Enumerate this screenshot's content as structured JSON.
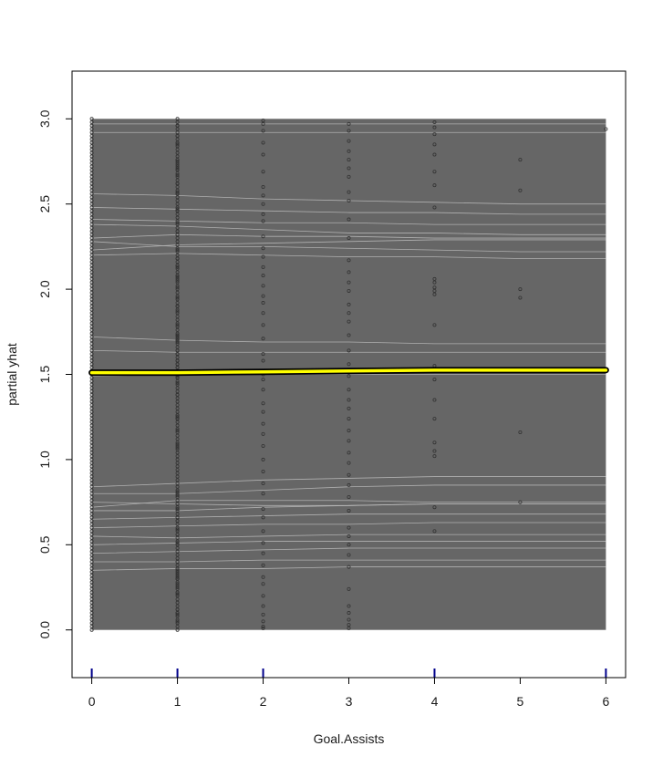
{
  "chart_data": {
    "type": "line",
    "title": "",
    "xlabel": "Goal.Assists",
    "ylabel": "partial yhat",
    "xlim": [
      -0.23,
      6.23
    ],
    "ylim": [
      -0.28,
      3.28
    ],
    "xticks": [
      0,
      1,
      2,
      3,
      4,
      5,
      6
    ],
    "yticks": [
      0.0,
      0.5,
      1.0,
      1.5,
      2.0,
      2.5,
      3.0
    ],
    "xtick_labels": [
      "0",
      "1",
      "2",
      "3",
      "4",
      "5",
      "6"
    ],
    "ytick_labels": [
      "0.0",
      "0.5",
      "1.0",
      "1.5",
      "2.0",
      "2.5",
      "3.0"
    ],
    "grid": false,
    "legend": "none",
    "band": {
      "description": "individual conditional expectation curves",
      "x_range": [
        0,
        6
      ],
      "y_range": [
        0.0,
        3.0
      ],
      "color": "#666666"
    },
    "lighter_lines": [
      {
        "values": [
          2.28,
          2.25,
          2.25,
          2.24,
          2.23,
          2.22,
          2.22
        ]
      },
      {
        "values": [
          2.23,
          2.26,
          2.27,
          2.28,
          2.29,
          2.29,
          2.29
        ]
      },
      {
        "values": [
          2.38,
          2.37,
          2.35,
          2.33,
          2.33,
          2.32,
          2.32
        ]
      },
      {
        "values": [
          2.41,
          2.4,
          2.39,
          2.39,
          2.38,
          2.38,
          2.38
        ]
      },
      {
        "values": [
          2.2,
          2.21,
          2.2,
          2.19,
          2.19,
          2.18,
          2.18
        ]
      },
      {
        "values": [
          2.3,
          2.32,
          2.31,
          2.31,
          2.3,
          2.3,
          2.3
        ]
      },
      {
        "values": [
          2.56,
          2.55,
          2.53,
          2.52,
          2.51,
          2.5,
          2.5
        ]
      },
      {
        "values": [
          2.48,
          2.47,
          2.46,
          2.45,
          2.45,
          2.44,
          2.44
        ]
      },
      {
        "values": [
          1.72,
          1.7,
          1.69,
          1.69,
          1.68,
          1.68,
          1.68
        ]
      },
      {
        "values": [
          1.64,
          1.63,
          1.63,
          1.63,
          1.63,
          1.63,
          1.63
        ]
      },
      {
        "values": [
          1.49,
          1.5,
          1.5,
          1.5,
          1.5,
          1.5,
          1.5
        ]
      },
      {
        "values": [
          0.84,
          0.86,
          0.88,
          0.89,
          0.9,
          0.9,
          0.9
        ]
      },
      {
        "values": [
          0.8,
          0.8,
          0.82,
          0.84,
          0.85,
          0.85,
          0.85
        ]
      },
      {
        "values": [
          0.75,
          0.74,
          0.73,
          0.73,
          0.74,
          0.74,
          0.74
        ]
      },
      {
        "values": [
          0.7,
          0.7,
          0.72,
          0.73,
          0.74,
          0.74,
          0.74
        ]
      },
      {
        "values": [
          0.72,
          0.76,
          0.76,
          0.76,
          0.75,
          0.75,
          0.75
        ]
      },
      {
        "values": [
          0.65,
          0.66,
          0.67,
          0.68,
          0.68,
          0.68,
          0.68
        ]
      },
      {
        "values": [
          0.6,
          0.61,
          0.62,
          0.62,
          0.63,
          0.63,
          0.63
        ]
      },
      {
        "values": [
          0.55,
          0.54,
          0.55,
          0.56,
          0.56,
          0.56,
          0.56
        ]
      },
      {
        "values": [
          0.5,
          0.51,
          0.52,
          0.52,
          0.52,
          0.52,
          0.52
        ]
      },
      {
        "values": [
          0.45,
          0.46,
          0.47,
          0.48,
          0.48,
          0.48,
          0.48
        ]
      },
      {
        "values": [
          0.4,
          0.4,
          0.41,
          0.41,
          0.41,
          0.41,
          0.41
        ]
      },
      {
        "values": [
          0.35,
          0.36,
          0.36,
          0.37,
          0.37,
          0.37,
          0.37
        ]
      },
      {
        "values": [
          2.97,
          2.97,
          2.97,
          2.97,
          2.97,
          2.97,
          2.97
        ]
      },
      {
        "values": [
          2.92,
          2.92,
          2.92,
          2.92,
          2.92,
          2.92,
          2.92
        ]
      }
    ],
    "series": [
      {
        "x": [
          0,
          1,
          2,
          3,
          4,
          5,
          6
        ],
        "values": [
          1.51,
          1.51,
          1.515,
          1.52,
          1.525,
          1.525,
          1.525
        ],
        "color": "#ffff00"
      }
    ],
    "observations": [
      {
        "x": 1,
        "y": [
          2.71,
          0.59,
          1.48,
          0.27,
          1.09,
          1.24,
          1.26,
          2.57,
          1.25,
          1.79,
          0.33,
          2.7,
          1.62,
          0.05,
          2.23,
          2.39,
          2.56,
          2.08,
          0.71,
          2.47,
          1.69,
          2.05,
          2.76,
          1.73,
          1.73,
          1.5,
          1.95,
          0.51,
          1.87,
          1.45,
          1.9,
          2.34,
          2.73,
          2.67,
          0.74,
          2.62,
          2.32,
          0.56,
          1.07,
          2.96,
          1.64,
          0.09,
          1.7,
          1.58,
          2.86,
          1.54,
          0.79,
          1.9,
          2.46,
          2.85,
          1.17,
          0.4,
          0.66,
          2.01,
          2.75,
          0.12,
          2.07,
          0.36,
          1.56,
          0.21,
          2.62,
          0.22,
          1.49,
          0.1,
          0.81,
          1.24,
          2.14,
          2.9,
          2.13,
          1.51,
          1.9,
          2.18,
          1.38,
          1.71,
          0.3,
          0.3,
          0.35,
          0.25,
          0.64,
          0.31
        ]
      },
      {
        "x": 2,
        "y": [
          2.99,
          2.97,
          2.93,
          2.86,
          2.79,
          2.69,
          2.6,
          2.55,
          2.5,
          2.44,
          2.4,
          2.31,
          2.24,
          2.19,
          2.13,
          2.08,
          2.02,
          1.96,
          1.92,
          1.86,
          1.79,
          1.71,
          1.62,
          1.58,
          1.5,
          1.47,
          1.41,
          1.33,
          1.28,
          1.21,
          1.15,
          1.08,
          1.0,
          0.93,
          0.86,
          0.8,
          0.71,
          0.66,
          0.58,
          0.51,
          0.45,
          0.38,
          0.31,
          0.27,
          0.2,
          0.14,
          0.09,
          0.05,
          0.02,
          0.01
        ]
      },
      {
        "x": 3,
        "y": [
          2.97,
          2.93,
          2.87,
          2.81,
          2.76,
          2.71,
          2.66,
          2.57,
          2.52,
          2.41,
          2.3,
          2.17,
          2.1,
          2.04,
          1.99,
          1.91,
          1.86,
          1.81,
          1.73,
          1.64,
          1.56,
          1.49,
          1.41,
          1.35,
          1.3,
          1.24,
          1.17,
          1.11,
          1.04,
          0.98,
          0.91,
          0.85,
          0.78,
          0.7,
          0.6,
          0.55,
          0.5,
          0.44,
          0.37,
          0.24,
          0.14,
          0.1,
          0.06,
          0.03,
          0.01
        ]
      },
      {
        "x": 4,
        "y": [
          2.98,
          2.95,
          2.91,
          2.85,
          2.79,
          2.69,
          2.61,
          2.48,
          2.06,
          2.04,
          2.01,
          1.99,
          1.97,
          1.79,
          1.55,
          1.47,
          1.35,
          1.24,
          1.1,
          1.05,
          1.02,
          0.72,
          0.58
        ]
      },
      {
        "x": 5,
        "y": [
          2.76,
          2.58,
          2.0,
          1.95,
          1.16,
          0.75
        ]
      },
      {
        "x": 6,
        "y": [
          2.94
        ]
      }
    ],
    "rug_x": [
      0,
      1,
      2,
      4,
      6
    ]
  },
  "colors": {
    "background": "#ffffff",
    "band": "#666666",
    "lighter_line": "#bdbdbd",
    "pdp_line": "#ffff00",
    "pdp_outline": "#000000",
    "points": "#333333",
    "rug": "#00008b",
    "axis": "#000000"
  }
}
